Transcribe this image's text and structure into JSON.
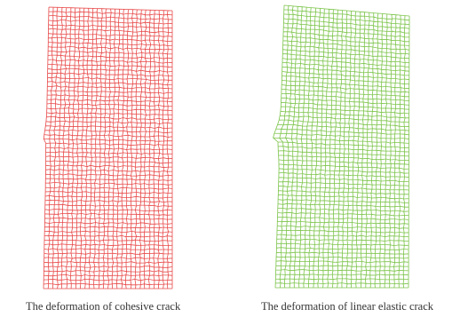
{
  "figures": [
    {
      "caption": "The deformation of cohesive crack",
      "mesh_color": "#e84a4a"
    },
    {
      "caption": "The deformation of linear elastic crack",
      "mesh_color": "#7cc44a"
    }
  ],
  "mesh": {
    "columns": 28,
    "rows": 64,
    "crack_position_fraction": 0.48
  }
}
